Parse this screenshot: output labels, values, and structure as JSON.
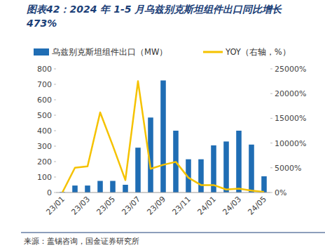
{
  "chart_data": {
    "type": "bar",
    "title": "图表42：2024 年 1-5 月乌兹别克斯坦组件出口同比增长 473%",
    "source": "来源：盖锡咨询，国金证券研究所",
    "categories": [
      "23/01",
      null,
      "23/03",
      null,
      "23/05",
      null,
      "23/07",
      null,
      "23/09",
      null,
      "23/11",
      null,
      "24/01",
      null,
      "24/03",
      null,
      "24/05"
    ],
    "series": [
      {
        "name": "乌兹别克斯坦组件出口（MW）",
        "type": "bar",
        "color": "#1f6db4",
        "values": [
          3,
          45,
          45,
          75,
          75,
          50,
          290,
          485,
          725,
          400,
          215,
          215,
          305,
          330,
          400,
          310,
          105
        ]
      },
      {
        "name": "YOY（右轴，%）",
        "type": "line",
        "color": "#f5c200",
        "axis": "y2",
        "values": [
          0,
          5000,
          5300,
          16200,
          9500,
          2500,
          22500,
          4800,
          5600,
          6200,
          3000,
          1500,
          1500,
          600,
          800,
          400,
          100
        ]
      }
    ],
    "ylim": [
      0,
      800
    ],
    "yticks": [
      0,
      100,
      200,
      300,
      400,
      500,
      600,
      700,
      800
    ],
    "y2lim": [
      0,
      25000
    ],
    "y2ticks": [
      {
        "value": 0,
        "label": "0%"
      },
      {
        "value": 5000,
        "label": "5000%"
      },
      {
        "value": 10000,
        "label": "10000%"
      },
      {
        "value": 15000,
        "label": "15000%"
      },
      {
        "value": 20000,
        "label": "20000%"
      },
      {
        "value": 25000,
        "label": "25000%"
      }
    ],
    "grid": false,
    "legend": "top"
  }
}
